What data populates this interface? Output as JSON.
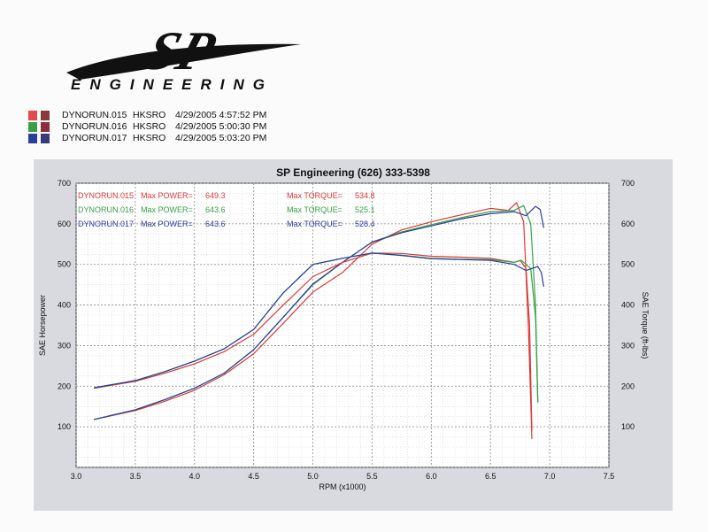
{
  "header": {
    "logo_text": "SP",
    "logo_subtitle": "ENGINEERING"
  },
  "runs": [
    {
      "name": "DYNORUN.015",
      "car": "HKSRO",
      "date": "4/29/2005 4:57:52 PM",
      "colors": [
        "#e04a4a",
        "#8a3a3a"
      ]
    },
    {
      "name": "DYNORUN.016",
      "car": "HKSRO",
      "date": "4/29/2005 5:00:30 PM",
      "colors": [
        "#3aa048",
        "#8a2f3a"
      ]
    },
    {
      "name": "DYNORUN.017",
      "car": "HKSRO",
      "date": "4/29/2005 5:03:20 PM",
      "colors": [
        "#2b3f9a",
        "#3a3a7a"
      ]
    }
  ],
  "chart_data": {
    "type": "line",
    "title": "SP Engineering (626) 333-5398",
    "xlabel": "RPM (x1000)",
    "ylabel": "SAE Horsepower",
    "ylabel_right": "SAE Torque (ft-lbs)",
    "xlim": [
      3.0,
      7.5
    ],
    "ylim": [
      0,
      700
    ],
    "y2lim": [
      0,
      700
    ],
    "xticks": [
      "3.0",
      "3.5",
      "4.0",
      "4.5",
      "5.0",
      "5.5",
      "6.0",
      "6.5",
      "7.0",
      "7.5"
    ],
    "yticks": [
      "100",
      "200",
      "300",
      "400",
      "500",
      "600",
      "700"
    ],
    "grid": true,
    "legend": [
      {
        "run": "DYNORUN.015",
        "power_label": "Max POWER=",
        "power": "649.3",
        "torque_label": "Max TORQUE=",
        "torque": "534.8",
        "color": "#d83a3a"
      },
      {
        "run": "DYNORUN.016",
        "power_label": "Max POWER=",
        "power": "643.6",
        "torque_label": "Max TORQUE=",
        "torque": "525.1",
        "color": "#3aa048"
      },
      {
        "run": "DYNORUN.017",
        "power_label": "Max POWER=",
        "power": "643.6",
        "torque_label": "Max TORQUE=",
        "torque": "528.4",
        "color": "#2b3f9a"
      }
    ],
    "series": [
      {
        "name": "DYNORUN.015 Power",
        "color": "#d83a3a",
        "x": [
          3.15,
          3.5,
          3.75,
          4.0,
          4.25,
          4.5,
          4.75,
          5.0,
          5.25,
          5.5,
          5.75,
          6.0,
          6.25,
          6.5,
          6.65,
          6.72,
          6.78,
          6.82,
          6.85
        ],
        "y": [
          118,
          140,
          163,
          190,
          228,
          280,
          355,
          432,
          480,
          550,
          585,
          605,
          622,
          638,
          633,
          652,
          605,
          350,
          70
        ]
      },
      {
        "name": "DYNORUN.016 Power",
        "color": "#3aa048",
        "x": [
          3.15,
          3.5,
          3.75,
          4.0,
          4.25,
          4.5,
          4.75,
          5.0,
          5.25,
          5.5,
          5.75,
          6.0,
          6.25,
          6.5,
          6.7,
          6.78,
          6.84,
          6.88,
          6.9
        ],
        "y": [
          118,
          142,
          167,
          195,
          232,
          290,
          370,
          450,
          505,
          555,
          580,
          598,
          615,
          630,
          633,
          645,
          600,
          400,
          160
        ]
      },
      {
        "name": "DYNORUN.017 Power",
        "color": "#2b3f9a",
        "x": [
          3.15,
          3.5,
          3.75,
          4.0,
          4.25,
          4.5,
          4.75,
          5.0,
          5.25,
          5.5,
          5.75,
          6.0,
          6.25,
          6.5,
          6.7,
          6.8,
          6.88,
          6.92,
          6.95
        ],
        "y": [
          118,
          142,
          167,
          195,
          232,
          290,
          370,
          452,
          505,
          555,
          578,
          595,
          612,
          625,
          630,
          620,
          643,
          635,
          590
        ]
      },
      {
        "name": "DYNORUN.015 Torque",
        "color": "#d83a3a",
        "x": [
          3.15,
          3.5,
          3.75,
          4.0,
          4.25,
          4.5,
          4.75,
          5.0,
          5.25,
          5.5,
          5.75,
          6.0,
          6.25,
          6.5,
          6.7,
          6.75,
          6.8,
          6.83,
          6.85
        ],
        "y": [
          195,
          212,
          232,
          255,
          285,
          328,
          400,
          470,
          505,
          528,
          527,
          520,
          518,
          515,
          505,
          510,
          490,
          350,
          90
        ]
      },
      {
        "name": "DYNORUN.016 Torque",
        "color": "#3aa048",
        "x": [
          3.15,
          3.5,
          3.75,
          4.0,
          4.25,
          4.5,
          4.75,
          5.0,
          5.25,
          5.5,
          5.75,
          6.0,
          6.25,
          6.5,
          6.7,
          6.76,
          6.84,
          6.88,
          6.9
        ],
        "y": [
          196,
          214,
          236,
          262,
          292,
          340,
          430,
          500,
          515,
          528,
          523,
          515,
          513,
          512,
          505,
          510,
          490,
          370,
          160
        ]
      },
      {
        "name": "DYNORUN.017 Torque",
        "color": "#2b3f9a",
        "x": [
          3.15,
          3.5,
          3.75,
          4.0,
          4.25,
          4.5,
          4.75,
          5.0,
          5.25,
          5.5,
          5.75,
          6.0,
          6.25,
          6.5,
          6.7,
          6.8,
          6.9,
          6.93,
          6.95
        ],
        "y": [
          196,
          214,
          236,
          262,
          292,
          340,
          430,
          500,
          515,
          528,
          522,
          514,
          512,
          510,
          500,
          485,
          495,
          480,
          445
        ]
      }
    ]
  }
}
